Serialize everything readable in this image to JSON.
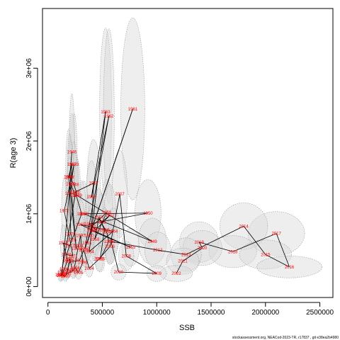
{
  "chart_data": {
    "type": "scatter",
    "xlabel": "SSB",
    "ylabel": "R(age 3)",
    "xlim": [
      -50000,
      2620000
    ],
    "ylim": [
      -150000,
      3820000
    ],
    "x_ticks": [
      0,
      500000,
      1000000,
      1500000,
      2000000,
      2500000
    ],
    "x_tick_labels": [
      "0",
      "500000",
      "1000000",
      "1500000",
      "2000000",
      "2500000"
    ],
    "y_ticks": [
      0,
      1000000,
      2000000,
      3000000
    ],
    "y_tick_labels": [
      "0e+00",
      "1e+06",
      "2e+06",
      "3e+06"
    ],
    "ellipse_fill": "#d9d9d9",
    "ellipse_stroke": "#9a9a9a",
    "label_color": "#ff0000",
    "line_color": "#000000",
    "points": [
      {
        "year": "1946",
        "x": 220000,
        "y": 1850000,
        "sx": 25000,
        "sy": 800000
      },
      {
        "year": "1947",
        "x": 200000,
        "y": 1500000,
        "sx": 22000,
        "sy": 600000
      },
      {
        "year": "1948",
        "x": 240000,
        "y": 1400000,
        "sx": 30000,
        "sy": 600000
      },
      {
        "year": "1949",
        "x": 270000,
        "y": 1250000,
        "sx": 30000,
        "sy": 500000
      },
      {
        "year": "1950",
        "x": 330000,
        "y": 1000000,
        "sx": 45000,
        "sy": 450000
      },
      {
        "year": "1951",
        "x": 380000,
        "y": 860000,
        "sx": 45000,
        "sy": 400000
      },
      {
        "year": "1952",
        "x": 440000,
        "y": 780000,
        "sx": 45000,
        "sy": 350000
      },
      {
        "year": "1953",
        "x": 490000,
        "y": 880000,
        "sx": 40000,
        "sy": 400000
      },
      {
        "year": "1954",
        "x": 540000,
        "y": 750000,
        "sx": 40000,
        "sy": 300000
      },
      {
        "year": "1955",
        "x": 560000,
        "y": 620000,
        "sx": 40000,
        "sy": 300000
      },
      {
        "year": "1956",
        "x": 520000,
        "y": 780000,
        "sx": 40000,
        "sy": 300000
      },
      {
        "year": "1957",
        "x": 470000,
        "y": 950000,
        "sx": 40000,
        "sy": 400000
      },
      {
        "year": "1958",
        "x": 430000,
        "y": 650000,
        "sx": 40000,
        "sy": 300000
      },
      {
        "year": "1959",
        "x": 400000,
        "y": 820000,
        "sx": 40000,
        "sy": 300000
      },
      {
        "year": "1960",
        "x": 380000,
        "y": 700000,
        "sx": 40000,
        "sy": 300000
      },
      {
        "year": "1961",
        "x": 360000,
        "y": 600000,
        "sx": 40000,
        "sy": 250000
      },
      {
        "year": "1962",
        "x": 340000,
        "y": 520000,
        "sx": 40000,
        "sy": 250000
      },
      {
        "year": "1963",
        "x": 400000,
        "y": 1230000,
        "sx": 50000,
        "sy": 500000
      },
      {
        "year": "1964",
        "x": 380000,
        "y": 480000,
        "sx": 40000,
        "sy": 250000
      },
      {
        "year": "1965",
        "x": 300000,
        "y": 850000,
        "sx": 40000,
        "sy": 350000
      },
      {
        "year": "1966",
        "x": 400000,
        "y": 770000,
        "sx": 40000,
        "sy": 300000
      },
      {
        "year": "1967",
        "x": 420000,
        "y": 1420000,
        "sx": 60000,
        "sy": 600000
      },
      {
        "year": "1968",
        "x": 250000,
        "y": 1300000,
        "sx": 35000,
        "sy": 550000
      },
      {
        "year": "1969",
        "x": 310000,
        "y": 1000000,
        "sx": 40000,
        "sy": 450000
      },
      {
        "year": "1970",
        "x": 170000,
        "y": 440000,
        "sx": 30000,
        "sy": 200000
      },
      {
        "year": "1971",
        "x": 230000,
        "y": 420000,
        "sx": 30000,
        "sy": 200000
      },
      {
        "year": "1972",
        "x": 150000,
        "y": 1040000,
        "sx": 25000,
        "sy": 450000
      },
      {
        "year": "1973",
        "x": 240000,
        "y": 1680000,
        "sx": 30000,
        "sy": 700000
      },
      {
        "year": "1974",
        "x": 200000,
        "y": 1280000,
        "sx": 30000,
        "sy": 500000
      },
      {
        "year": "1975",
        "x": 210000,
        "y": 720000,
        "sx": 30000,
        "sy": 300000
      },
      {
        "year": "1976",
        "x": 220000,
        "y": 640000,
        "sx": 30000,
        "sy": 280000
      },
      {
        "year": "1977",
        "x": 200000,
        "y": 560000,
        "sx": 30000,
        "sy": 250000
      },
      {
        "year": "1978",
        "x": 140000,
        "y": 600000,
        "sx": 25000,
        "sy": 250000
      },
      {
        "year": "1979",
        "x": 180000,
        "y": 360000,
        "sx": 25000,
        "sy": 180000
      },
      {
        "year": "1980",
        "x": 150000,
        "y": 240000,
        "sx": 25000,
        "sy": 120000
      },
      {
        "year": "1981",
        "x": 130000,
        "y": 160000,
        "sx": 20000,
        "sy": 80000
      },
      {
        "year": "1982",
        "x": 130000,
        "y": 190000,
        "sx": 20000,
        "sy": 90000
      },
      {
        "year": "1983",
        "x": 220000,
        "y": 1680000,
        "sx": 30000,
        "sy": 700000
      },
      {
        "year": "1984",
        "x": 190000,
        "y": 1510000,
        "sx": 28000,
        "sy": 650000
      },
      {
        "year": "1985",
        "x": 260000,
        "y": 520000,
        "sx": 35000,
        "sy": 250000
      },
      {
        "year": "1986",
        "x": 210000,
        "y": 1410000,
        "sx": 30000,
        "sy": 600000
      },
      {
        "year": "1987",
        "x": 250000,
        "y": 1250000,
        "sx": 35000,
        "sy": 550000
      },
      {
        "year": "1988",
        "x": 120000,
        "y": 150000,
        "sx": 20000,
        "sy": 80000
      },
      {
        "year": "1989",
        "x": 110000,
        "y": 160000,
        "sx": 20000,
        "sy": 80000
      },
      {
        "year": "1990",
        "x": 160000,
        "y": 140000,
        "sx": 20000,
        "sy": 70000
      },
      {
        "year": "1991",
        "x": 180000,
        "y": 210000,
        "sx": 25000,
        "sy": 100000
      },
      {
        "year": "1992",
        "x": 200000,
        "y": 380000,
        "sx": 25000,
        "sy": 180000
      },
      {
        "year": "1993",
        "x": 230000,
        "y": 210000,
        "sx": 25000,
        "sy": 100000
      },
      {
        "year": "1994",
        "x": 250000,
        "y": 260000,
        "sx": 30000,
        "sy": 120000
      },
      {
        "year": "1995",
        "x": 280000,
        "y": 190000,
        "sx": 30000,
        "sy": 90000
      },
      {
        "year": "1996",
        "x": 320000,
        "y": 330000,
        "sx": 35000,
        "sy": 150000
      },
      {
        "year": "1997",
        "x": 300000,
        "y": 700000,
        "sx": 35000,
        "sy": 300000
      },
      {
        "year": "1998",
        "x": 280000,
        "y": 560000,
        "sx": 35000,
        "sy": 250000
      },
      {
        "year": "1999",
        "x": 240000,
        "y": 230000,
        "sx": 30000,
        "sy": 110000
      },
      {
        "year": "2000",
        "x": 170000,
        "y": 170000,
        "sx": 25000,
        "sy": 80000
      },
      {
        "year": "2001",
        "x": 200000,
        "y": 340000,
        "sx": 25000,
        "sy": 160000
      },
      {
        "year": "2002",
        "x": 290000,
        "y": 360000,
        "sx": 30000,
        "sy": 160000
      },
      {
        "year": "2003",
        "x": 330000,
        "y": 500000,
        "sx": 35000,
        "sy": 220000
      },
      {
        "year": "2004",
        "x": 380000,
        "y": 250000,
        "sx": 35000,
        "sy": 120000
      },
      {
        "year": "2005",
        "x": 470000,
        "y": 380000,
        "sx": 40000,
        "sy": 170000
      },
      {
        "year": "2006",
        "x": 570000,
        "y": 550000,
        "sx": 45000,
        "sy": 250000
      },
      {
        "year": "2007",
        "x": 660000,
        "y": 1270000,
        "sx": 70000,
        "sy": 600000
      },
      {
        "year": "2008",
        "x": 720000,
        "y": 420000,
        "sx": 70000,
        "sy": 200000
      },
      {
        "year": "2009",
        "x": 1000000,
        "y": 180000,
        "sx": 90000,
        "sy": 110000
      },
      {
        "year": "2010",
        "x": 650000,
        "y": 200000,
        "sx": 70000,
        "sy": 110000
      },
      {
        "year": "2011",
        "x": 580000,
        "y": 620000,
        "sx": 60000,
        "sy": 300000
      },
      {
        "year": "2012",
        "x": 1010000,
        "y": 500000,
        "sx": 120000,
        "sy": 250000
      },
      {
        "year": "2013",
        "x": 1270000,
        "y": 440000,
        "sx": 140000,
        "sy": 230000
      },
      {
        "year": "2014",
        "x": 1800000,
        "y": 830000,
        "sx": 220000,
        "sy": 320000
      },
      {
        "year": "2015",
        "x": 2000000,
        "y": 440000,
        "sx": 240000,
        "sy": 200000
      },
      {
        "year": "2016",
        "x": 2220000,
        "y": 270000,
        "sx": 300000,
        "sy": 150000
      },
      {
        "year": "2017",
        "x": 2100000,
        "y": 730000,
        "sx": 260000,
        "sy": 300000
      },
      {
        "year": "2018",
        "x": 1700000,
        "y": 480000,
        "sx": 220000,
        "sy": 220000
      },
      {
        "year": "2019",
        "x": 1390000,
        "y": 610000,
        "sx": 180000,
        "sy": 280000
      },
      {
        "year": "2020",
        "x": 1420000,
        "y": 530000,
        "sx": 180000,
        "sy": 240000
      },
      {
        "year": "2021",
        "x": 1240000,
        "y": 350000,
        "sx": 150000,
        "sy": 180000
      },
      {
        "year": "2022",
        "x": 1180000,
        "y": 180000,
        "sx": 150000,
        "sy": 110000
      },
      {
        "year": "1959b",
        "x": 0,
        "y": 0,
        "sx": 0,
        "sy": 0,
        "hidden": true
      }
    ],
    "highlight_points": [
      {
        "year": "1962",
        "x": 560000,
        "y": 2340000,
        "sx": 50000,
        "sy": 1200000
      },
      {
        "year": "1963",
        "x": 530000,
        "y": 2400000,
        "sx": 55000,
        "sy": 1150000
      },
      {
        "year": "1961",
        "x": 780000,
        "y": 2440000,
        "sx": 110000,
        "sy": 1250000
      },
      {
        "year": "1950",
        "x": 920000,
        "y": 1010000,
        "sx": 120000,
        "sy": 460000
      },
      {
        "year": "1949",
        "x": 960000,
        "y": 620000,
        "sx": 130000,
        "sy": 320000
      },
      {
        "year": "1955",
        "x": 480000,
        "y": 380000,
        "sx": 45000,
        "sy": 180000
      },
      {
        "year": "1965",
        "x": 760000,
        "y": 540000,
        "sx": 80000,
        "sy": 260000
      },
      {
        "year": "1964",
        "x": 600000,
        "y": 760000,
        "sx": 60000,
        "sy": 320000
      },
      {
        "year": "1958",
        "x": 540000,
        "y": 1020000,
        "sx": 55000,
        "sy": 450000
      },
      {
        "year": "1952",
        "x": 570000,
        "y": 980000,
        "sx": 55000,
        "sy": 420000
      }
    ],
    "path_years_order": [
      "1961",
      "1962",
      "1963",
      "1950",
      "1949",
      "1965",
      "1964",
      "1955",
      "1966",
      "2007",
      "2008",
      "2009",
      "2010",
      "2011",
      "2012",
      "2013",
      "2014",
      "2017",
      "2016",
      "2015",
      "2018",
      "2019",
      "2020",
      "2021",
      "2022"
    ],
    "credit": "stockassessment.org, NEACod-2023-TR, r17837 , git e38ea2b4980"
  }
}
